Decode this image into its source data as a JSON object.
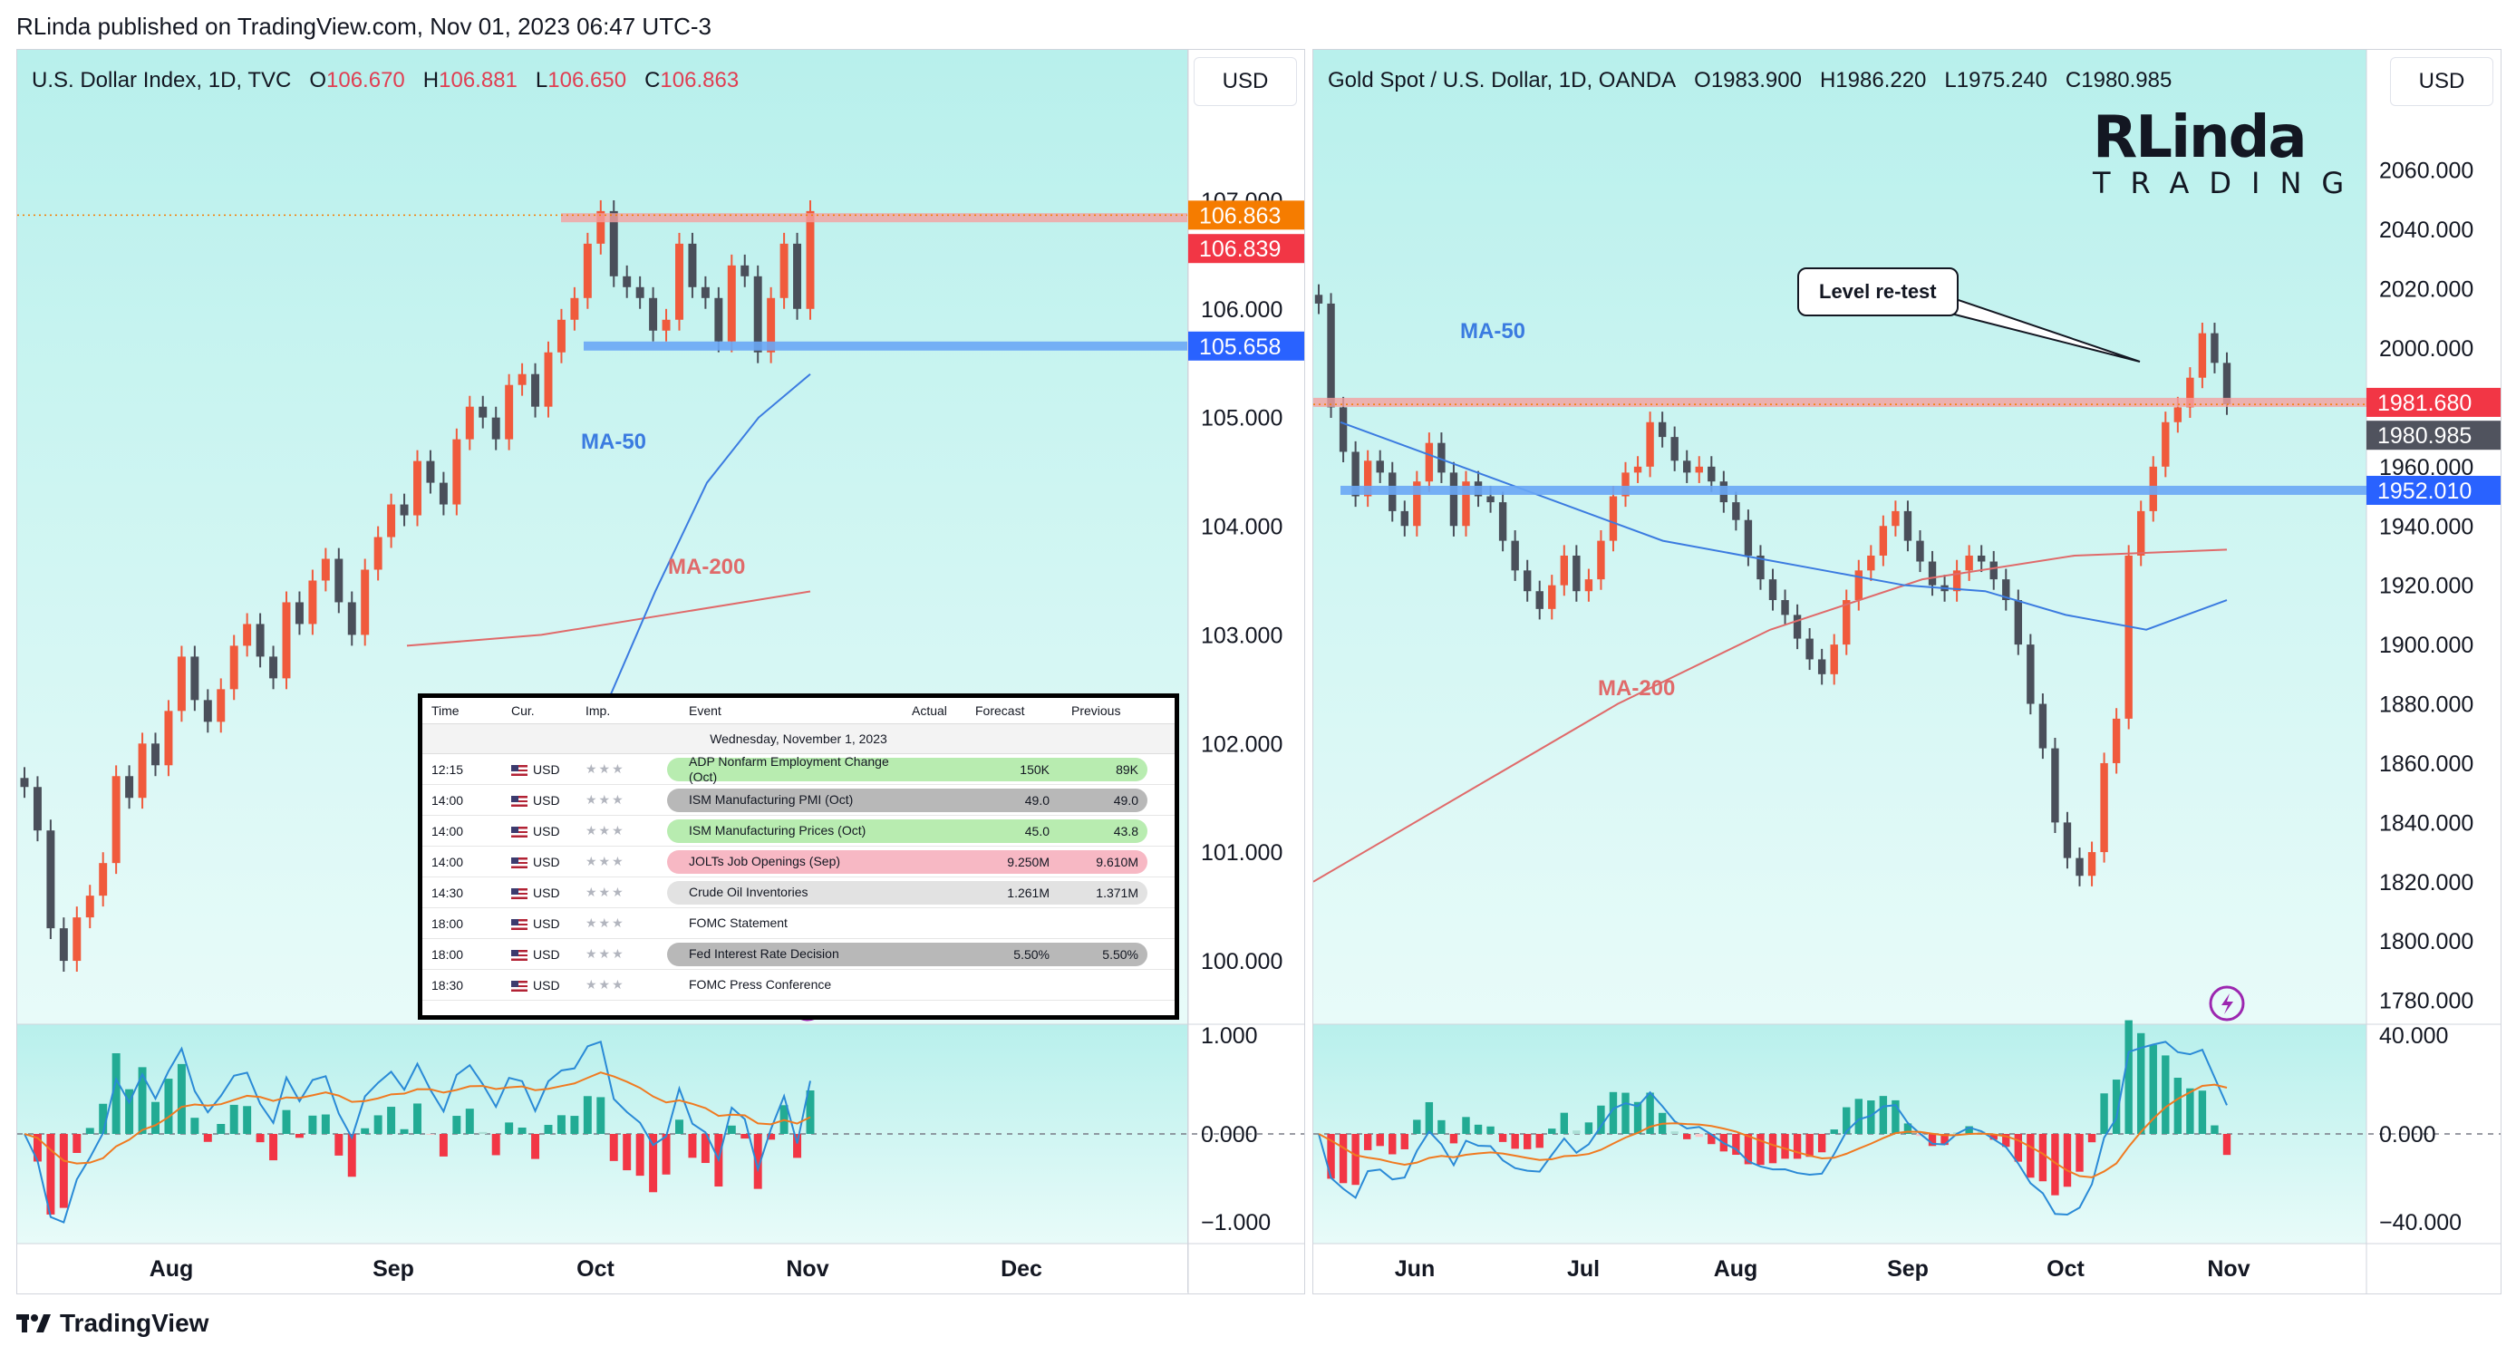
{
  "publish_line": "RLinda published on TradingView.com, Nov 01, 2023 06:47 UTC-3",
  "footer_brand": "TradingView",
  "colors": {
    "bull": "#f05a3c",
    "bear": "#4a4f5a",
    "ma50": "#3b7be0",
    "ma200": "#e06a6a",
    "panel_bg_top": "#b8f0ec",
    "panel_bg_bottom": "#e8fbf9",
    "macd": "#2a8ad6",
    "signal": "#f07a20"
  },
  "left": {
    "header": {
      "title": "U.S. Dollar Index, 1D, TVC",
      "o_label": "O",
      "o": "106.670",
      "h_label": "H",
      "h": "106.881",
      "l_label": "L",
      "l": "106.650",
      "c_label": "C",
      "c": "106.863"
    },
    "currency": "USD",
    "price_ticks": [
      "107.000",
      "106.000",
      "105.000",
      "104.000",
      "103.000",
      "102.000",
      "101.000",
      "100.000"
    ],
    "price_labels": [
      {
        "text": "106.863",
        "color": "#f57c00"
      },
      {
        "text": "106.839",
        "color": "#f23645"
      },
      {
        "text": "105.658",
        "color": "#2962ff"
      }
    ],
    "macd_ticks": [
      "1.000",
      "0.000",
      "−1.000"
    ],
    "months": [
      "Aug",
      "Sep",
      "Oct",
      "Nov",
      "Dec"
    ],
    "ma50_label": "MA-50",
    "ma200_label": "MA-200"
  },
  "right": {
    "header": {
      "title": "Gold Spot / U.S. Dollar, 1D, OANDA",
      "o_label": "O",
      "o": "1983.900",
      "h_label": "H",
      "h": "1986.220",
      "l_label": "L",
      "l": "1975.240",
      "c_label": "C",
      "c": "1980.985"
    },
    "currency": "USD",
    "price_ticks": [
      "2060.000",
      "2040.000",
      "2020.000",
      "2000.000",
      "1960.000",
      "1940.000",
      "1920.000",
      "1900.000",
      "1880.000",
      "1860.000",
      "1840.000",
      "1820.000",
      "1800.000",
      "1780.000"
    ],
    "price_labels": [
      {
        "text": "1981.680",
        "color": "#f23645"
      },
      {
        "text": "1980.985",
        "color": "#50535e"
      },
      {
        "text": "1952.010",
        "color": "#2962ff"
      }
    ],
    "macd_ticks": [
      "40.000",
      "0.000",
      "−40.000"
    ],
    "months": [
      "Jun",
      "Jul",
      "Aug",
      "Sep",
      "Oct",
      "Nov"
    ],
    "ma50_label": "MA-50",
    "ma200_label": "MA-200",
    "callout": "Level re-test",
    "brand": {
      "first": "RLinda",
      "second": "TRADING"
    }
  },
  "calendar": {
    "headers": [
      "Time",
      "Cur.",
      "Imp.",
      "Event",
      "Actual",
      "Forecast",
      "Previous"
    ],
    "date": "Wednesday, November 1, 2023",
    "rows": [
      {
        "time": "12:15",
        "cur": "USD",
        "event": "ADP Nonfarm Employment Change (Oct)",
        "actual": "",
        "forecast": "150K",
        "previous": "89K",
        "hl": "#b8ecb0"
      },
      {
        "time": "14:00",
        "cur": "USD",
        "event": "ISM Manufacturing PMI (Oct)",
        "actual": "",
        "forecast": "49.0",
        "previous": "49.0",
        "hl": "#b8b8b8"
      },
      {
        "time": "14:00",
        "cur": "USD",
        "event": "ISM Manufacturing Prices (Oct)",
        "actual": "",
        "forecast": "45.0",
        "previous": "43.8",
        "hl": "#b8ecb0"
      },
      {
        "time": "14:00",
        "cur": "USD",
        "event": "JOLTs Job Openings (Sep)",
        "actual": "",
        "forecast": "9.250M",
        "previous": "9.610M",
        "hl": "#f7b8c4"
      },
      {
        "time": "14:30",
        "cur": "USD",
        "event": "Crude Oil Inventories",
        "actual": "",
        "forecast": "1.261M",
        "previous": "1.371M",
        "hl": "#e2e2e2"
      },
      {
        "time": "18:00",
        "cur": "USD",
        "event": "FOMC Statement",
        "actual": "",
        "forecast": "",
        "previous": "",
        "hl": ""
      },
      {
        "time": "18:00",
        "cur": "USD",
        "event": "Fed Interest Rate Decision",
        "actual": "",
        "forecast": "5.50%",
        "previous": "5.50%",
        "hl": "#b8b8b8"
      },
      {
        "time": "18:30",
        "cur": "USD",
        "event": "FOMC Press Conference",
        "actual": "",
        "forecast": "",
        "previous": "",
        "hl": ""
      }
    ]
  },
  "chart_data": [
    {
      "type": "candlestick",
      "title": "U.S. Dollar Index, 1D, TVC",
      "ylim": [
        99.5,
        107.8
      ],
      "x_ticks": [
        "Aug",
        "Sep",
        "Oct",
        "Nov",
        "Dec"
      ],
      "close_series": [
        101.6,
        101.2,
        100.3,
        100.0,
        100.4,
        100.6,
        100.9,
        101.7,
        101.5,
        102.0,
        101.8,
        102.3,
        102.8,
        102.4,
        102.2,
        102.5,
        102.9,
        103.1,
        102.8,
        102.6,
        103.3,
        103.1,
        103.5,
        103.7,
        103.3,
        103.0,
        103.6,
        103.9,
        104.2,
        104.1,
        104.6,
        104.4,
        104.2,
        104.8,
        105.1,
        105.0,
        104.8,
        105.3,
        105.4,
        105.1,
        105.6,
        105.9,
        106.1,
        106.6,
        106.9,
        106.3,
        106.2,
        106.1,
        105.8,
        105.9,
        106.6,
        106.2,
        106.1,
        105.7,
        106.4,
        106.3,
        105.6,
        106.1,
        106.6,
        106.0,
        106.9
      ],
      "ma50": [
        101.7,
        102.3,
        103.4,
        104.4,
        105.0,
        105.4
      ],
      "ma200": [
        102.9,
        103.0,
        103.2,
        103.4
      ],
      "levels": [
        106.839,
        105.658
      ],
      "last": 106.863
    },
    {
      "type": "candlestick",
      "title": "Gold Spot / U.S. Dollar, 1D, OANDA",
      "ylim": [
        1775,
        2070
      ],
      "x_ticks": [
        "Jun",
        "Jul",
        "Aug",
        "Sep",
        "Oct",
        "Nov"
      ],
      "close_series": [
        2015,
        1980,
        1965,
        1950,
        1962,
        1958,
        1945,
        1940,
        1955,
        1968,
        1958,
        1940,
        1955,
        1950,
        1948,
        1935,
        1925,
        1918,
        1912,
        1920,
        1930,
        1918,
        1922,
        1935,
        1950,
        1958,
        1960,
        1975,
        1970,
        1962,
        1958,
        1960,
        1955,
        1948,
        1942,
        1930,
        1922,
        1915,
        1910,
        1902,
        1895,
        1890,
        1900,
        1915,
        1925,
        1930,
        1940,
        1945,
        1935,
        1928,
        1920,
        1918,
        1925,
        1930,
        1928,
        1922,
        1915,
        1900,
        1880,
        1865,
        1840,
        1828,
        1822,
        1830,
        1860,
        1875,
        1930,
        1945,
        1960,
        1975,
        1980,
        1990,
        2005,
        1995,
        1981
      ],
      "ma50": [
        1975,
        1965,
        1955,
        1945,
        1935,
        1930,
        1925,
        1920,
        1918,
        1910,
        1905,
        1915
      ],
      "ma200": [
        1820,
        1850,
        1880,
        1905,
        1922,
        1930,
        1932
      ],
      "levels": [
        1981.68,
        1952.01
      ],
      "last": 1980.985
    }
  ]
}
